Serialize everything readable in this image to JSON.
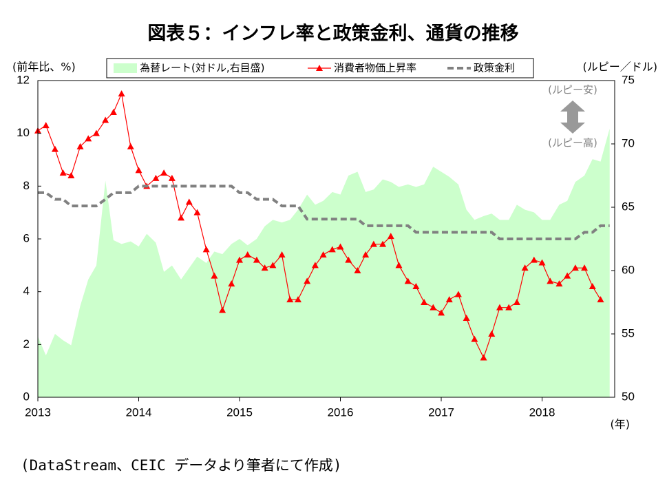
{
  "chart_data": {
    "type": "line",
    "title": "図表５：インフレ率と政策金利、通貨の推移",
    "y_label": "(前年比、%)",
    "y2_label": "(ルピー／ドル)",
    "x_label": "(年)",
    "source": "(DataStream、CEIC データより筆者にて作成)",
    "annotations": [
      "(ルピー安)",
      "(ルピー高)"
    ],
    "x": [
      2013,
      2013.08,
      2013.17,
      2013.25,
      2013.33,
      2013.42,
      2013.5,
      2013.58,
      2013.67,
      2013.75,
      2013.83,
      2013.92,
      2014,
      2014.08,
      2014.17,
      2014.25,
      2014.33,
      2014.42,
      2014.5,
      2014.58,
      2014.67,
      2014.75,
      2014.83,
      2014.92,
      2015,
      2015.08,
      2015.17,
      2015.25,
      2015.33,
      2015.42,
      2015.5,
      2015.58,
      2015.67,
      2015.75,
      2015.83,
      2015.92,
      2016,
      2016.08,
      2016.17,
      2016.25,
      2016.33,
      2016.42,
      2016.5,
      2016.58,
      2016.67,
      2016.75,
      2016.83,
      2016.92,
      2017,
      2017.08,
      2017.17,
      2017.25,
      2017.33,
      2017.42,
      2017.5,
      2017.58,
      2017.67,
      2017.75,
      2017.83,
      2017.92,
      2018,
      2018.08,
      2018.17,
      2018.25,
      2018.33,
      2018.42,
      2018.5,
      2018.58,
      2018.67
    ],
    "series": [
      {
        "name": "為替レート(対ドル,右目盛)",
        "color": "#ccffcc",
        "style": "area",
        "axis": "y2",
        "values": [
          54.8,
          53.3,
          55.0,
          54.5,
          54.1,
          57.2,
          59.3,
          60.4,
          67.1,
          62.4,
          62.1,
          62.3,
          61.9,
          62.9,
          62.2,
          59.9,
          60.4,
          59.3,
          60.2,
          61.1,
          60.6,
          61.5,
          61.3,
          62.1,
          62.5,
          62.0,
          62.5,
          63.5,
          64.0,
          63.8,
          64.0,
          64.8,
          66.0,
          65.2,
          65.5,
          66.2,
          66.0,
          67.5,
          67.8,
          66.2,
          66.4,
          67.2,
          67.0,
          66.6,
          66.8,
          66.6,
          66.8,
          68.2,
          67.8,
          67.4,
          66.8,
          64.8,
          64.0,
          64.3,
          64.5,
          64.0,
          64.0,
          65.2,
          64.8,
          64.6,
          64.0,
          64.0,
          65.2,
          65.5,
          67.0,
          67.5,
          68.8,
          68.6,
          71.2
        ]
      },
      {
        "name": "消費者物価上昇率",
        "color": "#ff0000",
        "style": "line",
        "marker": "triangle",
        "values": [
          10.1,
          10.3,
          9.4,
          8.5,
          8.4,
          9.5,
          9.8,
          10.0,
          10.5,
          10.8,
          11.5,
          9.5,
          8.6,
          8.0,
          8.3,
          8.5,
          8.3,
          6.8,
          7.4,
          7.0,
          5.6,
          4.6,
          3.3,
          4.3,
          5.2,
          5.4,
          5.2,
          4.9,
          5.0,
          5.4,
          3.7,
          3.7,
          4.4,
          5.0,
          5.4,
          5.6,
          5.7,
          5.2,
          4.8,
          5.4,
          5.8,
          5.8,
          6.1,
          5.0,
          4.4,
          4.2,
          3.6,
          3.4,
          3.2,
          3.7,
          3.9,
          3.0,
          2.2,
          1.5,
          2.4,
          3.4,
          3.4,
          3.6,
          4.9,
          5.2,
          5.1,
          4.4,
          4.3,
          4.6,
          4.9,
          4.9,
          4.2,
          3.7,
          null
        ]
      },
      {
        "name": "政策金利",
        "color": "#808080",
        "style": "line",
        "dash": true,
        "values": [
          7.75,
          7.75,
          7.5,
          7.5,
          7.25,
          7.25,
          7.25,
          7.25,
          7.5,
          7.75,
          7.75,
          7.75,
          8,
          8,
          8,
          8,
          8,
          8,
          8,
          8,
          8,
          8,
          8,
          8,
          7.75,
          7.75,
          7.5,
          7.5,
          7.5,
          7.25,
          7.25,
          7.25,
          6.75,
          6.75,
          6.75,
          6.75,
          6.75,
          6.75,
          6.75,
          6.5,
          6.5,
          6.5,
          6.5,
          6.5,
          6.5,
          6.25,
          6.25,
          6.25,
          6.25,
          6.25,
          6.25,
          6.25,
          6.25,
          6.25,
          6.25,
          6,
          6,
          6,
          6,
          6,
          6,
          6,
          6,
          6,
          6,
          6.25,
          6.25,
          6.5,
          6.5
        ]
      }
    ],
    "xlim": [
      2013,
      2018.72
    ],
    "xticks": [
      2013,
      2014,
      2015,
      2016,
      2017,
      2018
    ],
    "ylim": [
      0,
      12
    ],
    "yticks": [
      0,
      2,
      4,
      6,
      8,
      10,
      12
    ],
    "y2lim": [
      50,
      75
    ],
    "y2ticks": [
      50,
      55,
      60,
      65,
      70,
      75
    ]
  }
}
